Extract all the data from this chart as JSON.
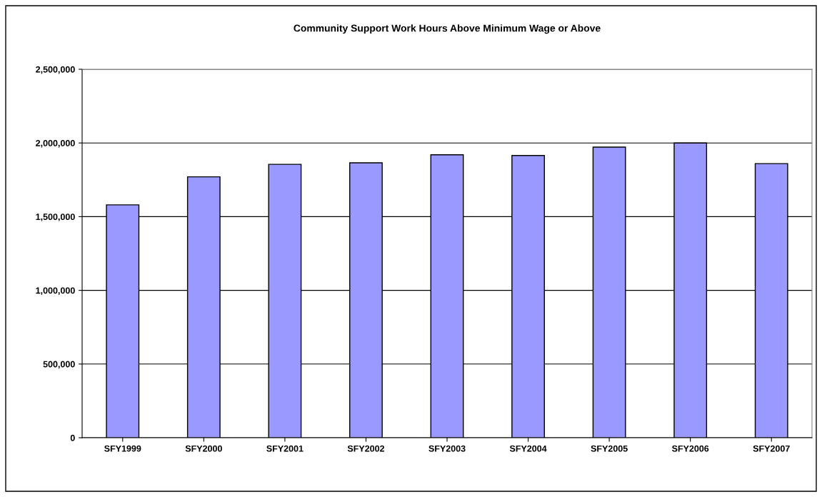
{
  "chart_data": {
    "type": "bar",
    "title": "Community Support Work Hours Above Minimum Wage or Above",
    "categories": [
      "SFY1999",
      "SFY2000",
      "SFY2001",
      "SFY2002",
      "SFY2003",
      "SFY2004",
      "SFY2005",
      "SFY2006",
      "SFY2007"
    ],
    "values": [
      1580000,
      1770000,
      1855000,
      1865000,
      1920000,
      1915000,
      1972000,
      2000000,
      1860000
    ],
    "color": "#9999ff",
    "ylim": [
      0,
      2500000
    ],
    "yticks": [
      {
        "value": 0,
        "label": "0"
      },
      {
        "value": 500000,
        "label": "500,000"
      },
      {
        "value": 1000000,
        "label": "1,000,000"
      },
      {
        "value": 1500000,
        "label": "1,500,000"
      },
      {
        "value": 2000000,
        "label": "2,000,000"
      },
      {
        "value": 2500000,
        "label": "2,500,000"
      }
    ],
    "grid": "y",
    "legend": false
  }
}
